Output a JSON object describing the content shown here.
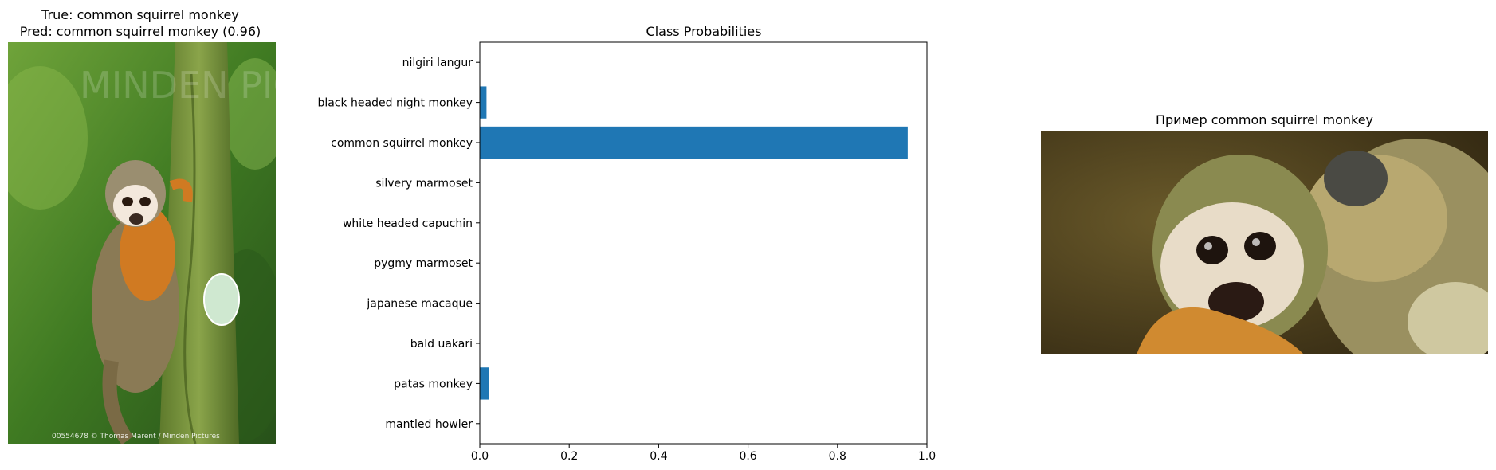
{
  "left_panel": {
    "title_line1": "True: common squirrel monkey",
    "title_line2": "Pred: common squirrel monkey (0.96)",
    "photo_watermark": "MINDEN PICTURES",
    "photo_caption": "00554678 © Thomas Marent / Minden Pictures"
  },
  "right_panel": {
    "title": "Пример common squirrel monkey"
  },
  "colors": {
    "bar": "#1f77b4",
    "axis": "#000000"
  },
  "chart_data": {
    "type": "bar",
    "orientation": "horizontal",
    "title": "Class Probabilities",
    "xlabel": "",
    "ylabel": "",
    "xlim": [
      0,
      1.0
    ],
    "x_ticks": [
      "0.0",
      "0.2",
      "0.4",
      "0.6",
      "0.8",
      "1.0"
    ],
    "categories": [
      "nilgiri langur",
      "black headed night monkey",
      "common squirrel monkey",
      "silvery marmoset",
      "white headed capuchin",
      "pygmy marmoset",
      "japanese macaque",
      "bald uakari",
      "patas monkey",
      "mantled howler"
    ],
    "values": [
      0.0,
      0.015,
      0.957,
      0.0,
      0.0,
      0.0,
      0.0,
      0.0,
      0.021,
      0.0
    ],
    "grid": false
  }
}
